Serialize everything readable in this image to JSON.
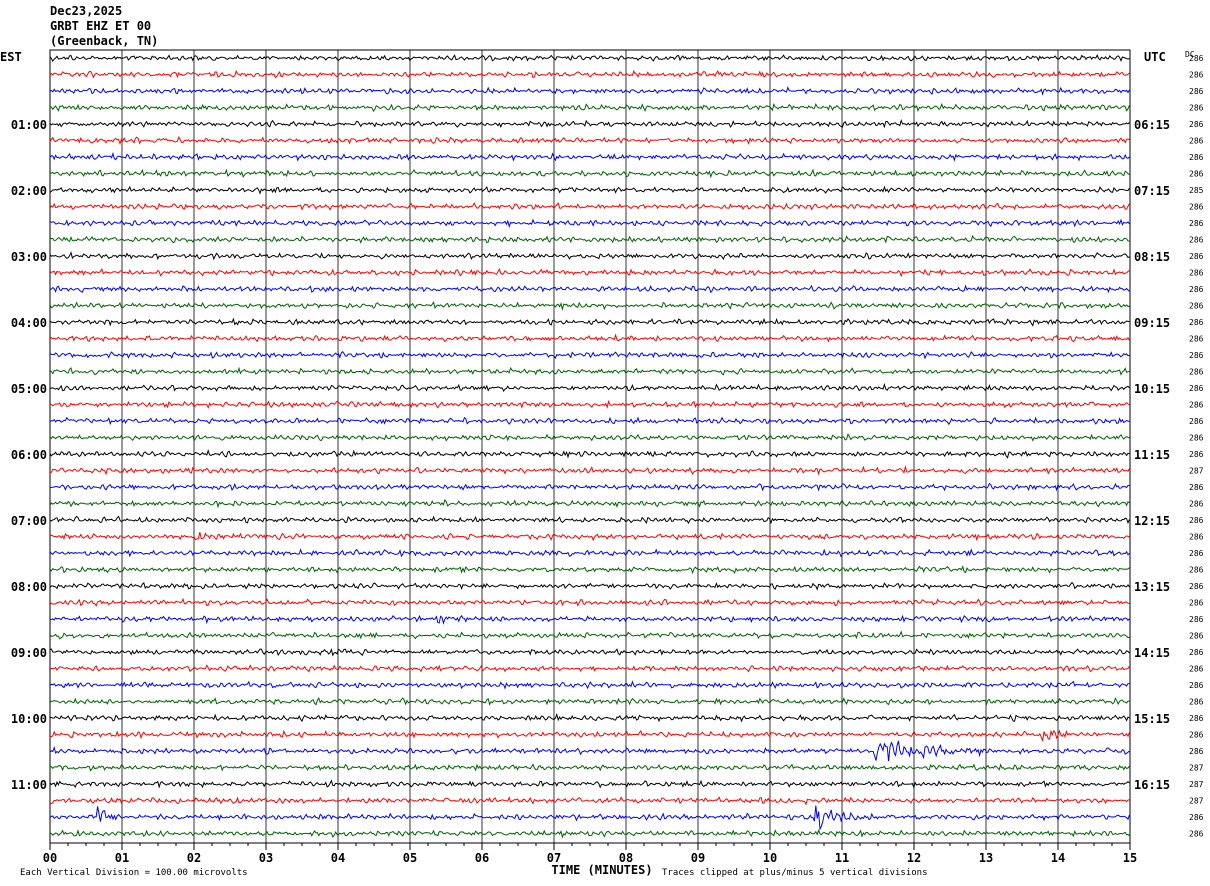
{
  "header": {
    "date": "Dec23,2025",
    "station": "GRBT EHZ ET 00",
    "location": "(Greenback, TN)"
  },
  "chart_data": {
    "type": "line",
    "title": "GRBT EHZ ET 00",
    "left_timezone": "EST",
    "right_timezone": "UTC",
    "dc_header": "DC",
    "xlabel": "TIME (MINUTES)",
    "xlim": [
      0,
      15
    ],
    "x_ticks": [
      "00",
      "01",
      "02",
      "03",
      "04",
      "05",
      "06",
      "07",
      "08",
      "09",
      "10",
      "11",
      "12",
      "13",
      "14",
      "15"
    ],
    "left_hour_labels": [
      {
        "row": 4,
        "text": "01:00"
      },
      {
        "row": 8,
        "text": "02:00"
      },
      {
        "row": 12,
        "text": "03:00"
      },
      {
        "row": 16,
        "text": "04:00"
      },
      {
        "row": 20,
        "text": "05:00"
      },
      {
        "row": 24,
        "text": "06:00"
      },
      {
        "row": 28,
        "text": "07:00"
      },
      {
        "row": 32,
        "text": "08:00"
      },
      {
        "row": 36,
        "text": "09:00"
      },
      {
        "row": 40,
        "text": "10:00"
      },
      {
        "row": 44,
        "text": "11:00"
      }
    ],
    "right_hour_labels": [
      {
        "row": 4,
        "text": "06:15"
      },
      {
        "row": 8,
        "text": "07:15"
      },
      {
        "row": 12,
        "text": "08:15"
      },
      {
        "row": 16,
        "text": "09:15"
      },
      {
        "row": 20,
        "text": "10:15"
      },
      {
        "row": 24,
        "text": "11:15"
      },
      {
        "row": 28,
        "text": "12:15"
      },
      {
        "row": 32,
        "text": "13:15"
      },
      {
        "row": 36,
        "text": "14:15"
      },
      {
        "row": 40,
        "text": "15:15"
      },
      {
        "row": 44,
        "text": "16:15"
      }
    ],
    "trace_colors": [
      "#000000",
      "#ff0000",
      "#0000ff",
      "#006400"
    ],
    "dc_offsets": [
      "286",
      "286",
      "286",
      "286",
      "286",
      "286",
      "286",
      "286",
      "285",
      "286",
      "286",
      "286",
      "286",
      "286",
      "286",
      "286",
      "286",
      "286",
      "286",
      "286",
      "286",
      "286",
      "286",
      "286",
      "286",
      "287",
      "286",
      "286",
      "286",
      "286",
      "286",
      "286",
      "286",
      "286",
      "286",
      "286",
      "286",
      "286",
      "286",
      "286",
      "286",
      "286",
      "286",
      "287",
      "287",
      "287",
      "286",
      "286"
    ],
    "events": [
      {
        "row": 34,
        "minute": 5.4,
        "amplitude": 1.6,
        "duration_min": 0.4
      },
      {
        "row": 42,
        "minute": 11.5,
        "amplitude": 3.5,
        "duration_min": 1.6
      },
      {
        "row": 41,
        "minute": 13.8,
        "amplitude": 1.6,
        "duration_min": 0.5
      },
      {
        "row": 46,
        "minute": 10.65,
        "amplitude": 3.5,
        "duration_min": 0.8
      },
      {
        "row": 46,
        "minute": 0.7,
        "amplitude": 2.5,
        "duration_min": 0.3
      },
      {
        "row": 29,
        "minute": 2.05,
        "amplitude": 1.3,
        "duration_min": 0.3
      },
      {
        "row": 36,
        "minute": 3.9,
        "amplitude": 1.3,
        "duration_min": 0.4
      }
    ],
    "footer_left": "Each Vertical Division =  100.00 microvolts",
    "footer_right": "Traces clipped at plus/minus 5 vertical divisions",
    "grid": true
  },
  "colors": {
    "grid": "#000000",
    "background": "#ffffff"
  }
}
